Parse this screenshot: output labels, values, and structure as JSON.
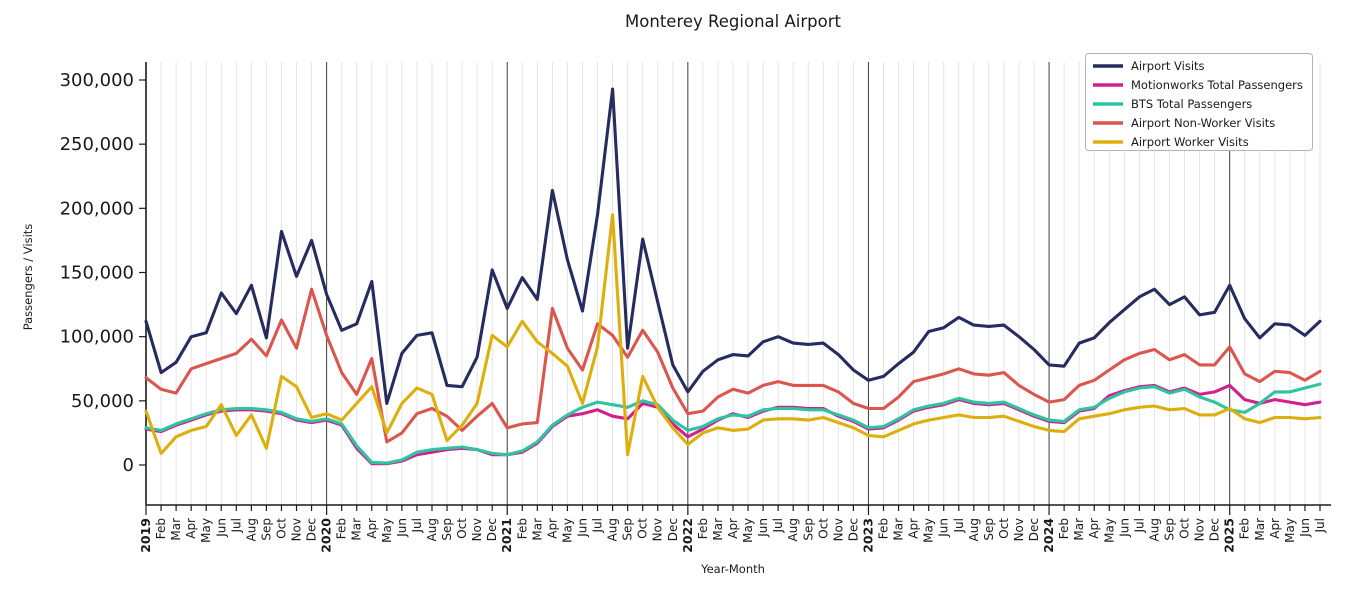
{
  "title": "Monterey Regional Airport",
  "axes": {
    "x_label": "Year-Month",
    "y_label": "Passengers / Visits",
    "y_ticks": [
      0,
      50000,
      100000,
      150000,
      200000,
      250000,
      300000
    ],
    "y_tick_labels": [
      "0",
      "50,000",
      "100,000",
      "150,000",
      "200,000",
      "250,000",
      "300,000"
    ]
  },
  "legend": {
    "position": "top-right",
    "entries": [
      {
        "label": "Airport Visits",
        "color": "#262c5f"
      },
      {
        "label": "Motionworks Total Passengers",
        "color": "#d11f8f"
      },
      {
        "label": "BTS Total Passengers",
        "color": "#2fc3a0"
      },
      {
        "label": "Airport Non-Worker Visits",
        "color": "#d9574f"
      },
      {
        "label": "Airport Worker Visits",
        "color": "#ddaf0e"
      }
    ]
  },
  "chart_data": {
    "type": "line",
    "title": "Monterey Regional Airport",
    "xlabel": "Year-Month",
    "ylabel": "Passengers / Visits",
    "ylim": [
      0,
      300000
    ],
    "grid": {
      "vertical_monthly": true,
      "year_boundary_lines": true,
      "horizontal": false
    },
    "legend_position": "top-right",
    "x_tick_labels": [
      "2019",
      "Feb",
      "Mar",
      "Apr",
      "May",
      "Jun",
      "Jul",
      "Aug",
      "Sep",
      "Oct",
      "Nov",
      "Dec",
      "2020",
      "Feb",
      "Mar",
      "Apr",
      "May",
      "Jun",
      "Jul",
      "Aug",
      "Sep",
      "Oct",
      "Nov",
      "Dec",
      "2021",
      "Feb",
      "Mar",
      "Apr",
      "May",
      "Jun",
      "Jul",
      "Aug",
      "Sep",
      "Oct",
      "Nov",
      "Dec",
      "2022",
      "Feb",
      "Mar",
      "Apr",
      "May",
      "Jun",
      "Jul",
      "Aug",
      "Sep",
      "Oct",
      "Nov",
      "Dec",
      "2023",
      "Feb",
      "Mar",
      "Apr",
      "May",
      "Jun",
      "Jul",
      "Aug",
      "Sep",
      "Oct",
      "Nov",
      "Dec",
      "2024",
      "Feb",
      "Mar",
      "Apr",
      "May",
      "Jun",
      "Jul",
      "Aug",
      "Sep",
      "Oct",
      "Nov",
      "Dec",
      "2025",
      "Feb",
      "Mar",
      "Apr",
      "May",
      "Jun",
      "Jul"
    ],
    "series": [
      {
        "name": "Airport Visits",
        "color": "#262c5f",
        "values": [
          112000,
          72000,
          80000,
          100000,
          103000,
          134000,
          118000,
          140000,
          99000,
          182000,
          147000,
          175000,
          133000,
          105000,
          110000,
          143000,
          48000,
          87000,
          101000,
          103000,
          62000,
          61000,
          84000,
          152000,
          122000,
          146000,
          129000,
          214000,
          160000,
          120000,
          195000,
          293000,
          91000,
          176000,
          127000,
          78000,
          57000,
          73000,
          82000,
          86000,
          85000,
          96000,
          100000,
          95000,
          94000,
          95000,
          86000,
          74000,
          66000,
          69000,
          79000,
          88000,
          104000,
          107000,
          115000,
          109000,
          108000,
          109000,
          100000,
          90000,
          78000,
          77000,
          95000,
          99000,
          111000,
          121000,
          131000,
          137000,
          125000,
          131000,
          117000,
          119000,
          140000,
          114000,
          99000,
          110000,
          109000,
          101000,
          112000
        ]
      },
      {
        "name": "Motionworks Total Passengers",
        "color": "#d11f8f",
        "values": [
          28000,
          26000,
          31000,
          35000,
          39000,
          42000,
          43000,
          43000,
          42000,
          40000,
          35000,
          33000,
          35000,
          31000,
          13000,
          1000,
          1000,
          3000,
          8000,
          10000,
          12000,
          13000,
          12000,
          8000,
          8000,
          10000,
          17000,
          30000,
          38000,
          40000,
          43000,
          38000,
          36000,
          48000,
          45000,
          32000,
          22000,
          28000,
          35000,
          40000,
          37000,
          42000,
          45000,
          45000,
          44000,
          44000,
          38000,
          34000,
          28000,
          29000,
          35000,
          42000,
          45000,
          47000,
          51000,
          48000,
          47000,
          48000,
          43000,
          38000,
          34000,
          33000,
          42000,
          44000,
          54000,
          58000,
          61000,
          62000,
          57000,
          60000,
          55000,
          57000,
          62000,
          51000,
          48000,
          51000,
          49000,
          47000,
          49000
        ]
      },
      {
        "name": "BTS Total Passengers",
        "color": "#2fc3a0",
        "values": [
          29000,
          27000,
          32000,
          36000,
          40000,
          43000,
          44000,
          44000,
          43000,
          41000,
          36000,
          34000,
          36000,
          32000,
          15000,
          2000,
          1500,
          4000,
          10000,
          12000,
          13000,
          14000,
          12000,
          9000,
          8000,
          11000,
          18000,
          31000,
          39000,
          45000,
          49000,
          47000,
          45000,
          50000,
          47000,
          35000,
          27000,
          30000,
          36000,
          39000,
          38000,
          43000,
          44000,
          44000,
          43000,
          43000,
          39000,
          35000,
          29000,
          30000,
          36000,
          43000,
          46000,
          48000,
          52000,
          49000,
          48000,
          49000,
          44000,
          39000,
          35000,
          34000,
          43000,
          45000,
          52000,
          57000,
          60000,
          61000,
          56000,
          59000,
          53000,
          49000,
          43000,
          41000,
          48000,
          57000,
          57000,
          60000,
          63000
        ]
      },
      {
        "name": "Airport Non-Worker Visits",
        "color": "#d9574f",
        "values": [
          68000,
          59000,
          56000,
          75000,
          79000,
          83000,
          87000,
          98000,
          85000,
          113000,
          91000,
          137000,
          101000,
          72000,
          55000,
          83000,
          18000,
          25000,
          40000,
          44000,
          38000,
          27000,
          38000,
          48000,
          29000,
          32000,
          33000,
          122000,
          91000,
          74000,
          110000,
          101000,
          84000,
          105000,
          88000,
          60000,
          40000,
          42000,
          53000,
          59000,
          56000,
          62000,
          65000,
          62000,
          62000,
          62000,
          57000,
          48000,
          44000,
          44000,
          53000,
          65000,
          68000,
          71000,
          75000,
          71000,
          70000,
          72000,
          62000,
          55000,
          49000,
          51000,
          62000,
          66000,
          74000,
          82000,
          87000,
          90000,
          82000,
          86000,
          78000,
          78000,
          92000,
          71000,
          65000,
          73000,
          72000,
          66000,
          73000
        ]
      },
      {
        "name": "Airport Worker Visits",
        "color": "#ddaf0e",
        "values": [
          42000,
          9000,
          22000,
          27000,
          30000,
          47000,
          23000,
          39000,
          13000,
          69000,
          61000,
          37000,
          40000,
          35000,
          48000,
          61000,
          25000,
          48000,
          60000,
          55000,
          19000,
          31000,
          48000,
          101000,
          92000,
          112000,
          96000,
          87000,
          77000,
          48000,
          92000,
          195000,
          8000,
          69000,
          45000,
          29000,
          16000,
          25000,
          29000,
          27000,
          28000,
          35000,
          36000,
          36000,
          35000,
          37000,
          33000,
          29000,
          23000,
          22000,
          27000,
          32000,
          35000,
          37000,
          39000,
          37000,
          37000,
          38000,
          34000,
          30000,
          27000,
          26000,
          36000,
          38000,
          40000,
          43000,
          45000,
          46000,
          43000,
          44000,
          39000,
          39000,
          44000,
          36000,
          33000,
          37000,
          37000,
          36000,
          37000
        ]
      }
    ]
  }
}
